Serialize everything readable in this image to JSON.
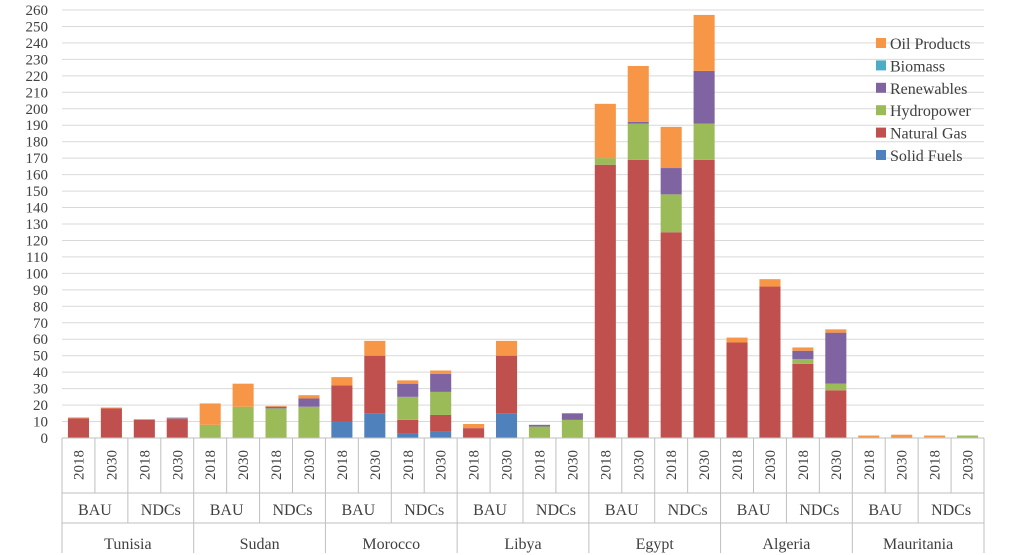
{
  "chart_data": {
    "type": "bar",
    "stacked": true,
    "title": "",
    "xlabel": "",
    "ylabel": "",
    "ylim": [
      0,
      260
    ],
    "ytick_step": 10,
    "grid": true,
    "legend_position": "top-right",
    "colors": {
      "Solid Fuels": "#4f81bd",
      "Natural Gas": "#c0504d",
      "Hydropower": "#9bbb59",
      "Renewables": "#8064a2",
      "Biomass": "#4bacc6",
      "Oil Products": "#f79646"
    },
    "legend_order": [
      "Oil Products",
      "Biomass",
      "Renewables",
      "Hydropower",
      "Natural Gas",
      "Solid Fuels"
    ],
    "stack_order": [
      "Solid Fuels",
      "Natural Gas",
      "Hydropower",
      "Renewables",
      "Biomass",
      "Oil Products"
    ],
    "countries": [
      {
        "name": "Tunisia",
        "scenarios": [
          {
            "name": "BAU",
            "years": [
              {
                "year": "2018",
                "values": {
                  "Solid Fuels": 0,
                  "Natural Gas": 12,
                  "Hydropower": 0,
                  "Renewables": 0,
                  "Biomass": 0,
                  "Oil Products": 0.5
                }
              },
              {
                "year": "2030",
                "values": {
                  "Solid Fuels": 0,
                  "Natural Gas": 18,
                  "Hydropower": 0,
                  "Renewables": 0,
                  "Biomass": 0,
                  "Oil Products": 0.5
                }
              }
            ]
          },
          {
            "name": "NDCs",
            "years": [
              {
                "year": "2018",
                "values": {
                  "Solid Fuels": 0,
                  "Natural Gas": 11,
                  "Hydropower": 0,
                  "Renewables": 0,
                  "Biomass": 0,
                  "Oil Products": 0.5
                }
              },
              {
                "year": "2030",
                "values": {
                  "Solid Fuels": 0,
                  "Natural Gas": 11.5,
                  "Hydropower": 0,
                  "Renewables": 0.5,
                  "Biomass": 0,
                  "Oil Products": 0.5
                }
              }
            ]
          }
        ]
      },
      {
        "name": "Sudan",
        "scenarios": [
          {
            "name": "BAU",
            "years": [
              {
                "year": "2018",
                "values": {
                  "Solid Fuels": 0,
                  "Natural Gas": 0,
                  "Hydropower": 8,
                  "Renewables": 0,
                  "Biomass": 0,
                  "Oil Products": 13
                }
              },
              {
                "year": "2030",
                "values": {
                  "Solid Fuels": 0,
                  "Natural Gas": 0,
                  "Hydropower": 19,
                  "Renewables": 0,
                  "Biomass": 0,
                  "Oil Products": 14
                }
              }
            ]
          },
          {
            "name": "NDCs",
            "years": [
              {
                "year": "2018",
                "values": {
                  "Solid Fuels": 0,
                  "Natural Gas": 0,
                  "Hydropower": 18,
                  "Renewables": 1,
                  "Biomass": 0,
                  "Oil Products": 0.5
                }
              },
              {
                "year": "2030",
                "values": {
                  "Solid Fuels": 0,
                  "Natural Gas": 0,
                  "Hydropower": 19,
                  "Renewables": 5,
                  "Biomass": 0,
                  "Oil Products": 2
                }
              }
            ]
          }
        ]
      },
      {
        "name": "Morocco",
        "scenarios": [
          {
            "name": "BAU",
            "years": [
              {
                "year": "2018",
                "values": {
                  "Solid Fuels": 10,
                  "Natural Gas": 22,
                  "Hydropower": 0,
                  "Renewables": 0,
                  "Biomass": 0,
                  "Oil Products": 5
                }
              },
              {
                "year": "2030",
                "values": {
                  "Solid Fuels": 15,
                  "Natural Gas": 35,
                  "Hydropower": 0,
                  "Renewables": 0,
                  "Biomass": 0,
                  "Oil Products": 9
                }
              }
            ]
          },
          {
            "name": "NDCs",
            "years": [
              {
                "year": "2018",
                "values": {
                  "Solid Fuels": 3,
                  "Natural Gas": 8,
                  "Hydropower": 14,
                  "Renewables": 8,
                  "Biomass": 0,
                  "Oil Products": 2
                }
              },
              {
                "year": "2030",
                "values": {
                  "Solid Fuels": 4,
                  "Natural Gas": 10,
                  "Hydropower": 14,
                  "Renewables": 11,
                  "Biomass": 0,
                  "Oil Products": 2
                }
              }
            ]
          }
        ]
      },
      {
        "name": "Libya",
        "scenarios": [
          {
            "name": "BAU",
            "years": [
              {
                "year": "2018",
                "values": {
                  "Solid Fuels": 0,
                  "Natural Gas": 6,
                  "Hydropower": 0,
                  "Renewables": 0,
                  "Biomass": 0,
                  "Oil Products": 2.5
                }
              },
              {
                "year": "2030",
                "values": {
                  "Solid Fuels": 15,
                  "Natural Gas": 35,
                  "Hydropower": 0,
                  "Renewables": 0,
                  "Biomass": 0,
                  "Oil Products": 9
                }
              }
            ]
          },
          {
            "name": "NDCs",
            "years": [
              {
                "year": "2018",
                "values": {
                  "Solid Fuels": 0,
                  "Natural Gas": 0,
                  "Hydropower": 7,
                  "Renewables": 1,
                  "Biomass": 0,
                  "Oil Products": 0
                }
              },
              {
                "year": "2030",
                "values": {
                  "Solid Fuels": 0,
                  "Natural Gas": 0,
                  "Hydropower": 11,
                  "Renewables": 4,
                  "Biomass": 0,
                  "Oil Products": 0
                }
              }
            ]
          }
        ]
      },
      {
        "name": "Egypt",
        "scenarios": [
          {
            "name": "BAU",
            "years": [
              {
                "year": "2018",
                "values": {
                  "Solid Fuels": 0,
                  "Natural Gas": 166,
                  "Hydropower": 4,
                  "Renewables": 0,
                  "Biomass": 0,
                  "Oil Products": 33
                }
              },
              {
                "year": "2030",
                "values": {
                  "Solid Fuels": 0,
                  "Natural Gas": 169,
                  "Hydropower": 22,
                  "Renewables": 1,
                  "Biomass": 0,
                  "Oil Products": 34
                }
              }
            ]
          },
          {
            "name": "NDCs",
            "years": [
              {
                "year": "2018",
                "values": {
                  "Solid Fuels": 0,
                  "Natural Gas": 125,
                  "Hydropower": 23,
                  "Renewables": 16,
                  "Biomass": 0,
                  "Oil Products": 25
                }
              },
              {
                "year": "2030",
                "values": {
                  "Solid Fuels": 0,
                  "Natural Gas": 169,
                  "Hydropower": 22,
                  "Renewables": 32,
                  "Biomass": 0,
                  "Oil Products": 34
                }
              }
            ]
          }
        ]
      },
      {
        "name": "Algeria",
        "scenarios": [
          {
            "name": "BAU",
            "years": [
              {
                "year": "2018",
                "values": {
                  "Solid Fuels": 0,
                  "Natural Gas": 58,
                  "Hydropower": 0,
                  "Renewables": 0,
                  "Biomass": 0,
                  "Oil Products": 3
                }
              },
              {
                "year": "2030",
                "values": {
                  "Solid Fuels": 0,
                  "Natural Gas": 92,
                  "Hydropower": 0,
                  "Renewables": 0,
                  "Biomass": 0,
                  "Oil Products": 4.5
                }
              }
            ]
          },
          {
            "name": "NDCs",
            "years": [
              {
                "year": "2018",
                "values": {
                  "Solid Fuels": 0,
                  "Natural Gas": 45,
                  "Hydropower": 3,
                  "Renewables": 5,
                  "Biomass": 0,
                  "Oil Products": 2
                }
              },
              {
                "year": "2030",
                "values": {
                  "Solid Fuels": 0,
                  "Natural Gas": 29,
                  "Hydropower": 4,
                  "Renewables": 31,
                  "Biomass": 0,
                  "Oil Products": 2
                }
              }
            ]
          }
        ]
      },
      {
        "name": "Mauritania",
        "scenarios": [
          {
            "name": "BAU",
            "years": [
              {
                "year": "2018",
                "values": {
                  "Solid Fuels": 0,
                  "Natural Gas": 0,
                  "Hydropower": 0,
                  "Renewables": 0,
                  "Biomass": 0,
                  "Oil Products": 1.5
                }
              },
              {
                "year": "2030",
                "values": {
                  "Solid Fuels": 0,
                  "Natural Gas": 0,
                  "Hydropower": 0,
                  "Renewables": 0,
                  "Biomass": 0,
                  "Oil Products": 2
                }
              }
            ]
          },
          {
            "name": "NDCs",
            "years": [
              {
                "year": "2018",
                "values": {
                  "Solid Fuels": 0,
                  "Natural Gas": 0,
                  "Hydropower": 0.5,
                  "Renewables": 0,
                  "Biomass": 0,
                  "Oil Products": 1
                }
              },
              {
                "year": "2030",
                "values": {
                  "Solid Fuels": 0,
                  "Natural Gas": 0,
                  "Hydropower": 1.5,
                  "Renewables": 0,
                  "Biomass": 0,
                  "Oil Products": 0
                }
              }
            ]
          }
        ]
      }
    ]
  }
}
